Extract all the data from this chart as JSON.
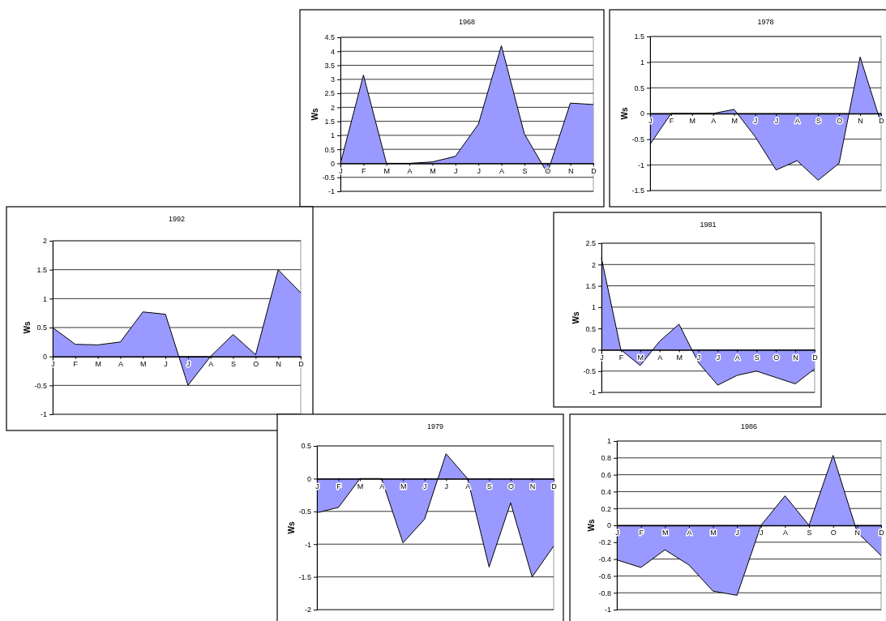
{
  "chart_data": [
    {
      "type": "area",
      "title": "1968",
      "ylabel": "Ws",
      "categories": [
        "J",
        "F",
        "M",
        "A",
        "M",
        "J",
        "J",
        "A",
        "S",
        "O",
        "N",
        "D"
      ],
      "series": [
        {
          "color": "#9999ff",
          "values": [
            0,
            3.15,
            0,
            0,
            0.05,
            0.25,
            1.4,
            4.2,
            1.05,
            -0.35,
            2.15,
            2.1
          ]
        }
      ],
      "ylim": [
        -1,
        4.5
      ],
      "yticks": [
        -1,
        -0.5,
        0,
        0.5,
        1,
        1.5,
        2,
        2.5,
        3,
        3.5,
        4,
        4.5
      ],
      "grid": "y"
    },
    {
      "type": "area",
      "title": "1978",
      "ylabel": "Ws",
      "categories": [
        "J",
        "F",
        "M",
        "A",
        "M",
        "J",
        "J",
        "A",
        "S",
        "O",
        "N",
        "D"
      ],
      "series": [
        {
          "color": "#9999ff",
          "values": [
            -0.6,
            0,
            0,
            0,
            0.08,
            -0.45,
            -1.1,
            -0.92,
            -1.3,
            -0.97,
            1.1,
            -0.2
          ]
        }
      ],
      "ylim": [
        -1.5,
        1.5
      ],
      "yticks": [
        -1.5,
        -1,
        -0.5,
        0,
        0.5,
        1,
        1.5
      ],
      "grid": "y"
    },
    {
      "type": "area",
      "title": "1992",
      "ylabel": "Ws",
      "categories": [
        "J",
        "F",
        "M",
        "A",
        "M",
        "J",
        "J",
        "A",
        "S",
        "O",
        "N",
        "D"
      ],
      "series": [
        {
          "color": "#9999ff",
          "values": [
            0.5,
            0.21,
            0.2,
            0.25,
            0.77,
            0.73,
            -0.5,
            0,
            0.38,
            0.03,
            1.5,
            1.1
          ]
        }
      ],
      "ylim": [
        -1,
        2
      ],
      "yticks": [
        -1,
        -0.5,
        0,
        0.5,
        1,
        1.5,
        2
      ],
      "grid": "y"
    },
    {
      "type": "area",
      "title": "1981",
      "ylabel": "Ws",
      "categories": [
        "J",
        "F",
        "M",
        "A",
        "M",
        "J",
        "J",
        "A",
        "S",
        "O",
        "N",
        "D"
      ],
      "series": [
        {
          "color": "#9999ff",
          "values": [
            2.15,
            0,
            -0.37,
            0.2,
            0.6,
            -0.3,
            -0.83,
            -0.6,
            -0.5,
            -0.65,
            -0.8,
            -0.45
          ]
        }
      ],
      "ylim": [
        -1,
        2.5
      ],
      "yticks": [
        -1,
        -0.5,
        0,
        0.5,
        1,
        1.5,
        2,
        2.5
      ],
      "grid": "y"
    },
    {
      "type": "area",
      "title": "1979",
      "ylabel": "Ws",
      "categories": [
        "J",
        "F",
        "M",
        "A",
        "M",
        "J",
        "J",
        "A",
        "S",
        "O",
        "N",
        "D"
      ],
      "series": [
        {
          "color": "#9999ff",
          "values": [
            -0.52,
            -0.44,
            0,
            0,
            -0.98,
            -0.62,
            0.38,
            0,
            -1.35,
            -0.37,
            -1.5,
            -1.03
          ]
        }
      ],
      "ylim": [
        -2,
        0.5
      ],
      "yticks": [
        -2,
        -1.5,
        -1,
        -0.5,
        0,
        0.5
      ],
      "grid": "y"
    },
    {
      "type": "area",
      "title": "1986",
      "ylabel": "Ws",
      "categories": [
        "J",
        "F",
        "M",
        "A",
        "M",
        "J",
        "J",
        "A",
        "S",
        "O",
        "N",
        "D"
      ],
      "series": [
        {
          "color": "#9999ff",
          "values": [
            -0.41,
            -0.5,
            -0.29,
            -0.47,
            -0.78,
            -0.83,
            0,
            0.35,
            0,
            0.83,
            -0.08,
            -0.36
          ]
        }
      ],
      "ylim": [
        -1,
        1
      ],
      "yticks": [
        -1,
        -0.8,
        -0.6,
        -0.4,
        -0.2,
        0,
        0.2,
        0.4,
        0.6,
        0.8,
        1
      ],
      "grid": "y"
    }
  ]
}
